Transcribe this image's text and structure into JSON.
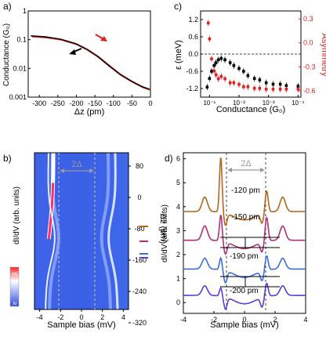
{
  "panels": {
    "a": {
      "label": "a)",
      "ylabel": "Conductance (G₀)",
      "xlabel": "Δz (pm)",
      "xticks": [
        "-300",
        "-250",
        "-200",
        "-150",
        "-100",
        "-50",
        "0"
      ],
      "yticks": [
        "1",
        "0.1",
        "0.01",
        "0.001"
      ]
    },
    "b": {
      "label": "b)",
      "ylabel": "dI/dV (arb. units)",
      "xlabel": "Sample bias (mV)",
      "xticks": [
        "-4",
        "-2",
        "0",
        "2",
        "4"
      ],
      "right_label": "Δz (pm)",
      "right_ticks": [
        "80",
        "0",
        "-80",
        "-160",
        "-240",
        "-320"
      ],
      "gap_label": "2Δ",
      "colorbar_hi": "Hi",
      "colorbar_lo": "lo"
    },
    "c": {
      "label": "c)",
      "ylabel": "ε (meV)",
      "xlabel": "Conductance (G₀)",
      "y2label": "Asymmetry",
      "yticks": [
        "1.2",
        "0.6",
        "0.0",
        "-0.6",
        "-1.2"
      ],
      "y2ticks": [
        "0.3",
        "0.0",
        "-0.3",
        "-0.6"
      ],
      "xticks": [
        "10⁻¹",
        "10⁻²",
        "10⁻³",
        "10⁻⁴"
      ]
    },
    "d": {
      "label": "d)",
      "ylabel": "dI/dV (arb. units)",
      "xlabel": "Sample bias (mV)",
      "xticks": [
        "-4",
        "-2",
        "0",
        "2",
        "4"
      ],
      "yticks": [
        "0",
        "1",
        "2",
        "3",
        "4",
        "5",
        "6"
      ],
      "gap_label": "2Δ",
      "traces": [
        {
          "label": "-120 pm",
          "color": "#b5651d",
          "offset": 3.8
        },
        {
          "label": "-150 pm",
          "color": "#b0307a",
          "offset": 2.6
        },
        {
          "label": "-190 pm",
          "color": "#3a6ee0",
          "offset": 1.4
        },
        {
          "label": "-200 pm",
          "color": "#5a3fd0",
          "offset": 0.3
        }
      ]
    }
  },
  "colors": {
    "black": "#000000",
    "red": "#e02020",
    "blue_map": "#3a62e6"
  },
  "chart_data": [
    {
      "type": "line",
      "title": "",
      "xlabel": "Δz (pm)",
      "ylabel": "Conductance (G₀)",
      "xlim": [
        -330,
        0
      ],
      "ylim": [
        0.001,
        1
      ],
      "yscale": "log",
      "series": [
        {
          "x": [
            -320,
            -280,
            -240,
            -200,
            -170,
            -140,
            -110,
            -80,
            -50,
            -20,
            0
          ],
          "values": [
            0.13,
            0.12,
            0.1,
            0.07,
            0.045,
            0.025,
            0.012,
            0.006,
            0.0035,
            0.0022,
            0.0018
          ]
        }
      ]
    },
    {
      "type": "scatter",
      "title": "",
      "xlabel": "Conductance (G₀)",
      "ylabel": "ε (meV)",
      "y2label": "Asymmetry",
      "xscale": "log",
      "xlim": [
        0.2,
        8e-05
      ],
      "ylim": [
        -1.5,
        1.5
      ],
      "y2lim": [
        -0.68,
        0.4
      ],
      "series": [
        {
          "x": [
            0.12,
            0.1,
            0.085,
            0.07,
            0.06,
            0.05,
            0.04,
            0.03,
            0.02,
            0.015,
            0.01,
            0.007,
            0.005,
            0.003,
            0.002,
            0.0012,
            0.0007,
            0.0004,
            0.00025,
            0.0001
          ],
          "values": [
            -1.15,
            -0.85,
            -0.6,
            -0.4,
            -0.3,
            -0.2,
            -0.15,
            -0.2,
            -0.3,
            -0.4,
            -0.5,
            -0.6,
            -0.75,
            -0.85,
            -0.9,
            -1.0,
            -1.05,
            -1.05,
            -1.1,
            -1.12
          ]
        },
        {
          "x": [
            0.11,
            0.1,
            0.085,
            0.07,
            0.06,
            0.05,
            0.04,
            0.03,
            0.02,
            0.015,
            0.01,
            0.007,
            0.005,
            0.003,
            0.002,
            0.0012,
            0.0007,
            0.0004,
            0.00025,
            0.0001
          ],
          "values": [
            0.25,
            0.05,
            -0.2,
            -0.35,
            -0.4,
            -0.45,
            -0.42,
            -0.45,
            -0.5,
            -0.5,
            -0.52,
            -0.55,
            -0.55,
            -0.57,
            -0.57,
            -0.58,
            -0.58,
            -0.58,
            -0.58,
            -0.58
          ]
        }
      ]
    }
  ]
}
